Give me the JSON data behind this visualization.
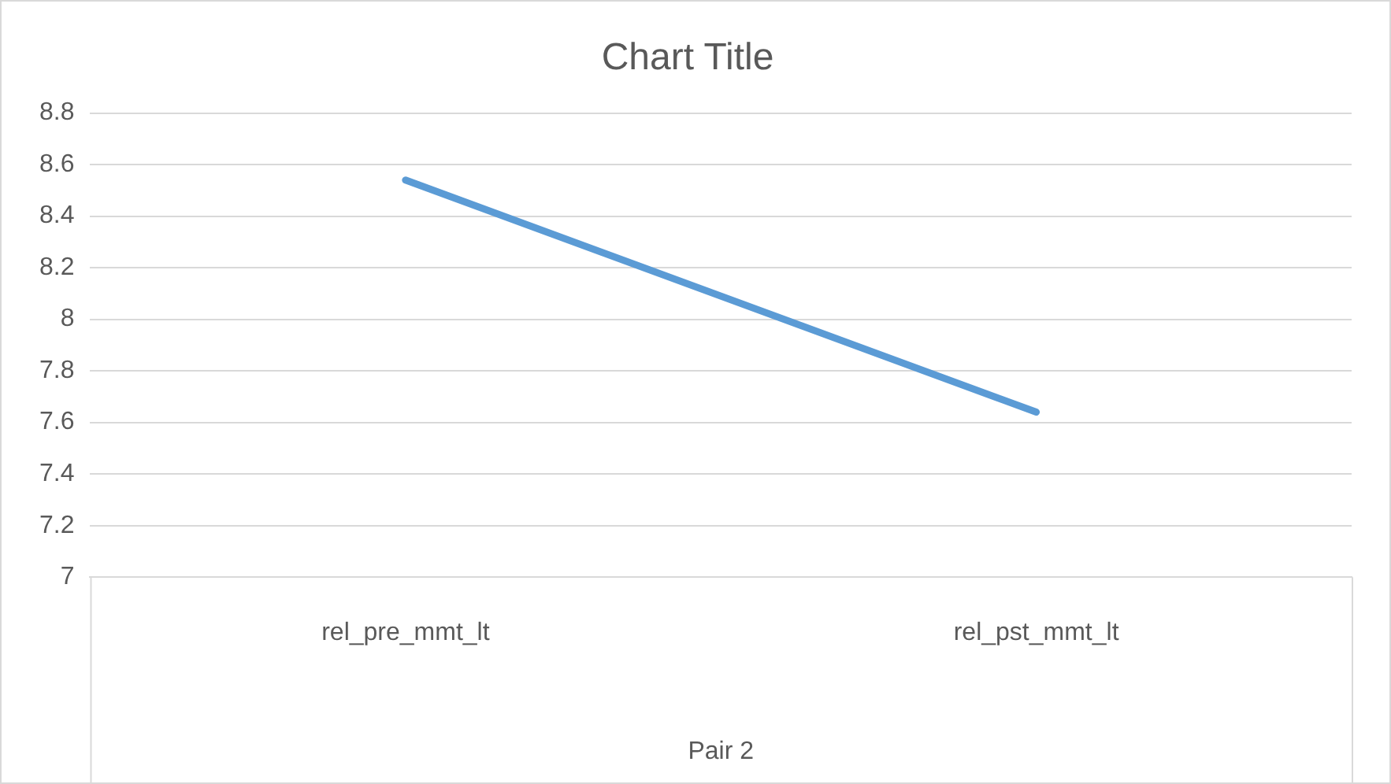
{
  "chart_data": {
    "type": "line",
    "title": "Chart Title",
    "xlabel": "Pair 2",
    "categories": [
      "rel_pre_mmt_lt",
      "rel_pst_mmt_lt"
    ],
    "series": [
      {
        "color": "#5b9bd5",
        "values": [
          8.54,
          7.64
        ]
      }
    ],
    "ylim": [
      7,
      8.8
    ],
    "yticks": [
      7,
      7.2,
      7.4,
      7.6,
      7.8,
      8,
      8.2,
      8.4,
      8.6,
      8.8
    ],
    "grid": "y",
    "legend": false,
    "marker": "none",
    "line_style": "solid"
  }
}
